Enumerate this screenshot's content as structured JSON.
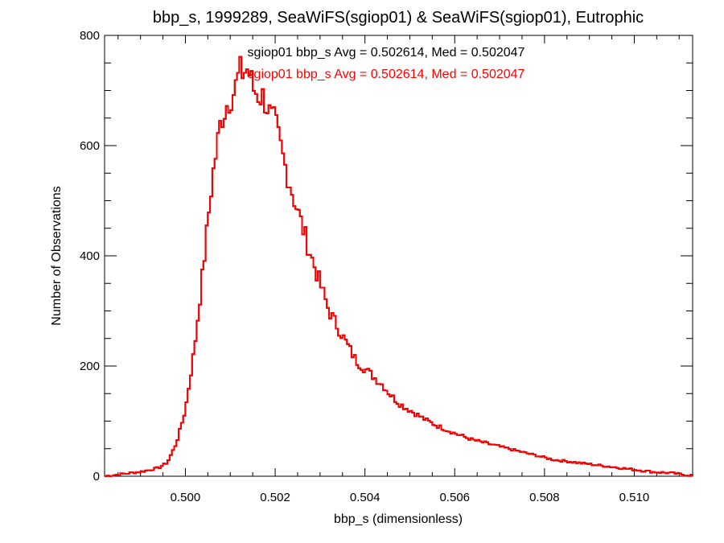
{
  "chart_data": {
    "type": "histogram",
    "title": "bbp_s, 1999289, SeaWiFS(sgiop01) & SeaWiFS(sgiop01), Eutrophic",
    "xlabel": "bbp_s (dimensionless)",
    "ylabel": "Number of Observations",
    "xlim": [
      0.4982,
      0.5113
    ],
    "ylim": [
      0,
      800
    ],
    "x_ticks": [
      0.5,
      0.502,
      0.504,
      0.506,
      0.508,
      0.51
    ],
    "x_tick_labels": [
      "0.500",
      "0.502",
      "0.504",
      "0.506",
      "0.508",
      "0.510"
    ],
    "y_ticks": [
      0,
      200,
      400,
      600,
      800
    ],
    "y_tick_labels": [
      "0",
      "200",
      "400",
      "600",
      "800"
    ],
    "grid": false,
    "annotations": [
      {
        "text": "sgiop01 bbp_s Avg = 0.502614, Med = 0.502047",
        "color": "#000000"
      },
      {
        "text": "sgiop01 bbp_s Avg = 0.502614, Med = 0.502047",
        "color": "#ff0000"
      }
    ],
    "series": [
      {
        "color": "#000000",
        "x": [
          0.4982,
          0.499,
          0.4994,
          0.4996,
          0.4998,
          0.5,
          0.5002,
          0.5004,
          0.5006,
          0.5008,
          0.501,
          0.5011,
          0.5012,
          0.5013,
          0.5014,
          0.5015,
          0.5016,
          0.5017,
          0.5018,
          0.5019,
          0.502,
          0.5022,
          0.5024,
          0.5026,
          0.5028,
          0.503,
          0.5032,
          0.5034,
          0.5036,
          0.5038,
          0.504,
          0.5042,
          0.5044,
          0.5046,
          0.5048,
          0.505,
          0.5052,
          0.5054,
          0.5056,
          0.5058,
          0.506,
          0.5062,
          0.5064,
          0.5066,
          0.5068,
          0.507,
          0.5072,
          0.5074,
          0.5076,
          0.5078,
          0.508,
          0.5082,
          0.5084,
          0.5086,
          0.5088,
          0.509,
          0.5092,
          0.5094,
          0.5096,
          0.5098,
          0.51,
          0.5102,
          0.5104,
          0.5106,
          0.5108,
          0.511,
          0.5112
        ],
        "values": [
          0,
          8,
          15,
          25,
          60,
          120,
          230,
          380,
          540,
          650,
          690,
          700,
          730,
          735,
          740,
          705,
          695,
          690,
          680,
          650,
          640,
          570,
          510,
          455,
          400,
          350,
          300,
          270,
          240,
          210,
          195,
          180,
          165,
          145,
          130,
          120,
          110,
          100,
          92,
          85,
          78,
          72,
          66,
          62,
          58,
          54,
          50,
          46,
          42,
          38,
          34,
          30,
          28,
          26,
          24,
          22,
          20,
          18,
          16,
          14,
          12,
          10,
          8,
          7,
          6,
          4,
          2
        ]
      },
      {
        "color": "#ff0000",
        "x": [
          0.4982,
          0.499,
          0.4994,
          0.4996,
          0.4998,
          0.5,
          0.5002,
          0.5004,
          0.5006,
          0.5008,
          0.501,
          0.5011,
          0.5012,
          0.5013,
          0.5014,
          0.5015,
          0.5016,
          0.5017,
          0.5018,
          0.5019,
          0.502,
          0.5022,
          0.5024,
          0.5026,
          0.5028,
          0.503,
          0.5032,
          0.5034,
          0.5036,
          0.5038,
          0.504,
          0.5042,
          0.5044,
          0.5046,
          0.5048,
          0.505,
          0.5052,
          0.5054,
          0.5056,
          0.5058,
          0.506,
          0.5062,
          0.5064,
          0.5066,
          0.5068,
          0.507,
          0.5072,
          0.5074,
          0.5076,
          0.5078,
          0.508,
          0.5082,
          0.5084,
          0.5086,
          0.5088,
          0.509,
          0.5092,
          0.5094,
          0.5096,
          0.5098,
          0.51,
          0.5102,
          0.5104,
          0.5106,
          0.5108,
          0.511,
          0.5112
        ],
        "values": [
          0,
          8,
          15,
          25,
          60,
          120,
          230,
          380,
          540,
          650,
          690,
          700,
          730,
          735,
          740,
          705,
          695,
          690,
          680,
          650,
          640,
          570,
          510,
          455,
          400,
          350,
          300,
          270,
          240,
          210,
          195,
          180,
          165,
          145,
          130,
          120,
          110,
          100,
          92,
          85,
          78,
          72,
          66,
          62,
          58,
          54,
          50,
          46,
          42,
          38,
          34,
          30,
          28,
          26,
          24,
          22,
          20,
          18,
          16,
          14,
          12,
          10,
          8,
          7,
          6,
          4,
          2
        ]
      }
    ]
  }
}
